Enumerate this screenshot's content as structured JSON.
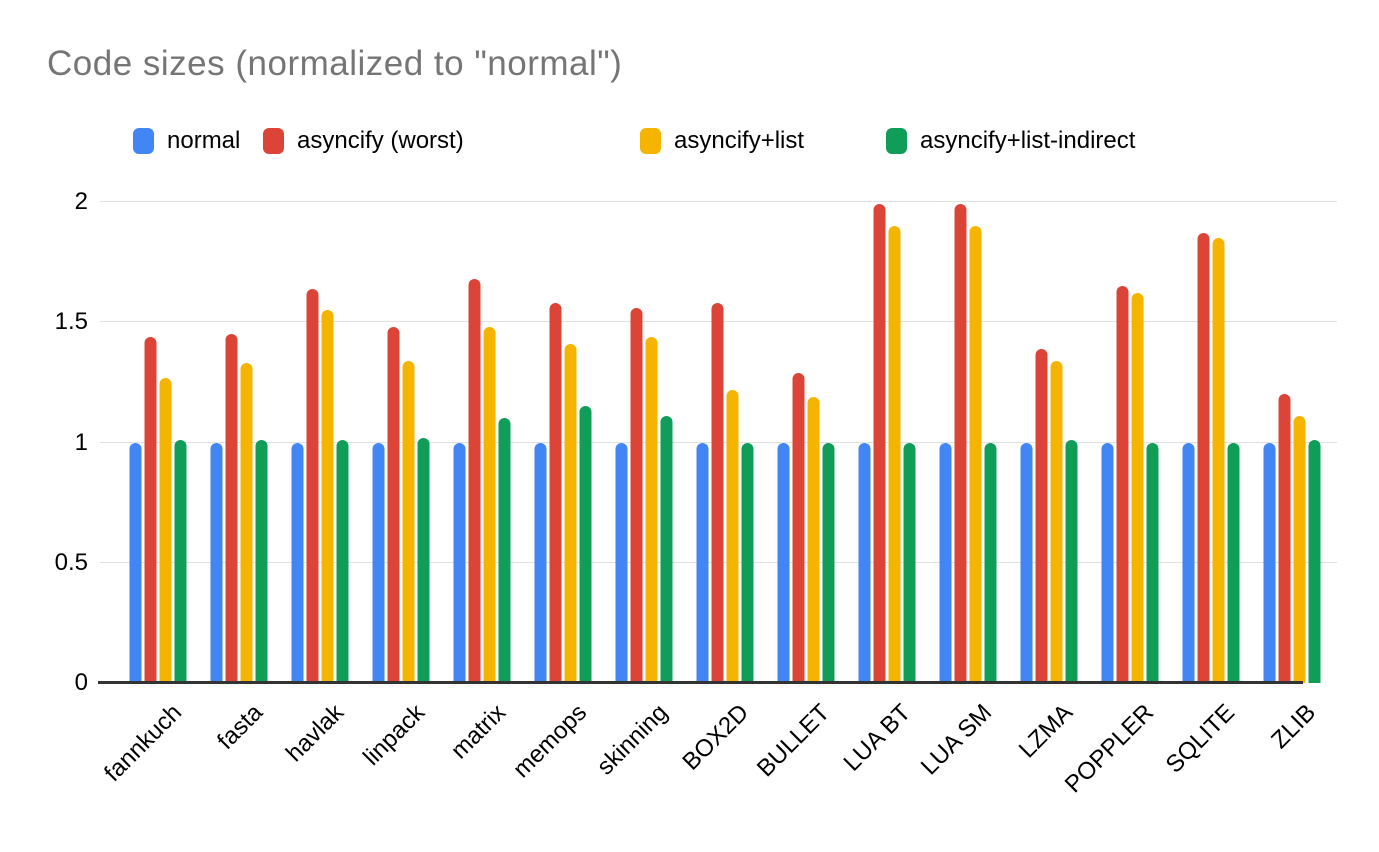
{
  "chart_data": {
    "type": "bar",
    "title": "Code sizes (normalized to \"normal\")",
    "categories": [
      "fannkuch",
      "fasta",
      "havlak",
      "linpack",
      "matrix",
      "memops",
      "skinning",
      "BOX2D",
      "BULLET",
      "LUA BT",
      "LUA SM",
      "LZMA",
      "POPPLER",
      "SQLITE",
      "ZLIB"
    ],
    "series": [
      {
        "name": "normal",
        "color": "#4285F4",
        "values": [
          1.0,
          1.0,
          1.0,
          1.0,
          1.0,
          1.0,
          1.0,
          1.0,
          1.0,
          1.0,
          1.0,
          1.0,
          1.0,
          1.0,
          1.0
        ]
      },
      {
        "name": "asyncify (worst)",
        "color": "#DB4437",
        "values": [
          1.44,
          1.45,
          1.64,
          1.48,
          1.68,
          1.58,
          1.56,
          1.58,
          1.29,
          1.99,
          1.99,
          1.39,
          1.65,
          1.87,
          1.2
        ]
      },
      {
        "name": "asyncify+list",
        "color": "#F4B400",
        "values": [
          1.27,
          1.33,
          1.55,
          1.34,
          1.48,
          1.41,
          1.44,
          1.22,
          1.19,
          1.9,
          1.9,
          1.34,
          1.62,
          1.85,
          1.11
        ]
      },
      {
        "name": "asyncify+list-indirect",
        "color": "#0F9D58",
        "values": [
          1.01,
          1.01,
          1.01,
          1.02,
          1.1,
          1.15,
          1.11,
          1.0,
          1.0,
          1.0,
          1.0,
          1.01,
          1.0,
          1.0,
          1.01
        ]
      }
    ],
    "ylim": [
      0,
      2
    ],
    "yticks": [
      0,
      0.5,
      1,
      1.5,
      2
    ],
    "grid": true,
    "legend_position": "top",
    "title_color": "#757575",
    "axis_label_color": "#000000",
    "gridline_color": "#e0e0e0",
    "baseline_color": "#333333",
    "background_color": "#ffffff"
  }
}
